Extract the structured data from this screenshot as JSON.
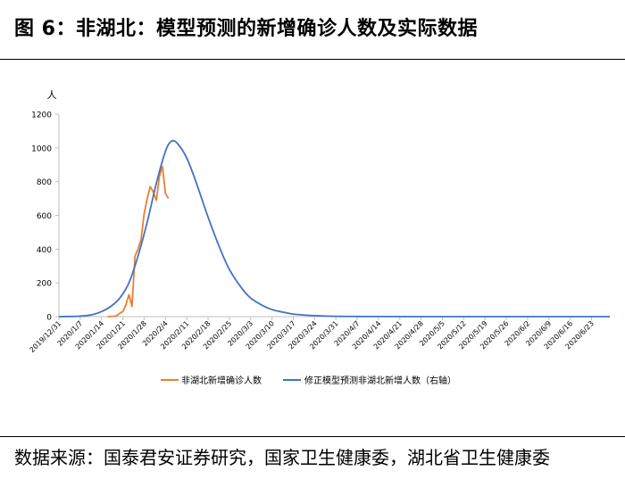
{
  "header": {
    "title": "图 6：非湖北：模型预测的新增确诊人数及实际数据"
  },
  "footer": {
    "source": "数据来源：国泰君安证券研究，国家卫生健康委，湖北省卫生健康委"
  },
  "colors": {
    "actual": "#ED7D31",
    "model": "#4472C4",
    "axis": "#BFBFBF"
  },
  "chart_data": {
    "type": "line",
    "ylabel": "人",
    "ylim": [
      0,
      1200
    ],
    "yticks": [
      0,
      200,
      400,
      600,
      800,
      1000,
      1200
    ],
    "xlim": [
      "2019-12-31",
      "2020-06-29"
    ],
    "xticks": [
      "2019/12/31",
      "2020/1/7",
      "2020/1/14",
      "2020/1/21",
      "2020/1/28",
      "2020/2/4",
      "2020/2/11",
      "2020/2/18",
      "2020/2/25",
      "2020/3/3",
      "2020/3/10",
      "2020/3/17",
      "2020/3/24",
      "2020/3/31",
      "2020/4/7",
      "2020/4/14",
      "2020/4/21",
      "2020/4/28",
      "2020/5/5",
      "2020/5/12",
      "2020/5/19",
      "2020/5/26",
      "2020/6/2",
      "2020/6/9",
      "2020/6/16",
      "2020/6/23"
    ],
    "legend_position": "bottom",
    "grid": false,
    "series": [
      {
        "name": "非湖北新增确诊人数",
        "color": "#ED7D31",
        "x": [
          "2020-01-16",
          "2020-01-18",
          "2020-01-19",
          "2020-01-20",
          "2020-01-21",
          "2020-01-22",
          "2020-01-23",
          "2020-01-24",
          "2020-01-25",
          "2020-01-26",
          "2020-01-27",
          "2020-01-28",
          "2020-01-29",
          "2020-01-30",
          "2020-01-31",
          "2020-02-01",
          "2020-02-02",
          "2020-02-03",
          "2020-02-04",
          "2020-02-05"
        ],
        "y": [
          0,
          2,
          5,
          20,
          30,
          70,
          130,
          60,
          360,
          400,
          460,
          610,
          700,
          770,
          740,
          690,
          830,
          890,
          730,
          700
        ]
      },
      {
        "name": "修正模型预测非湖北新增人数（右轴）",
        "color": "#4472C4",
        "x": [
          "2019-12-31",
          "2020-01-07",
          "2020-01-11",
          "2020-01-14",
          "2020-01-17",
          "2020-01-20",
          "2020-01-23",
          "2020-01-26",
          "2020-01-29",
          "2020-02-01",
          "2020-02-04",
          "2020-02-06",
          "2020-02-08",
          "2020-02-11",
          "2020-02-14",
          "2020-02-18",
          "2020-02-22",
          "2020-02-25",
          "2020-02-29",
          "2020-03-03",
          "2020-03-07",
          "2020-03-10",
          "2020-03-14",
          "2020-03-17",
          "2020-03-21",
          "2020-03-24",
          "2020-03-31",
          "2020-04-07",
          "2020-04-14",
          "2020-04-28",
          "2020-05-26",
          "2020-06-29"
        ],
        "y": [
          0,
          3,
          12,
          30,
          60,
          110,
          200,
          360,
          560,
          790,
          980,
          1040,
          1025,
          940,
          800,
          590,
          400,
          280,
          170,
          110,
          65,
          42,
          25,
          15,
          9,
          6,
          2,
          1,
          0.5,
          0,
          0,
          0
        ]
      }
    ]
  }
}
